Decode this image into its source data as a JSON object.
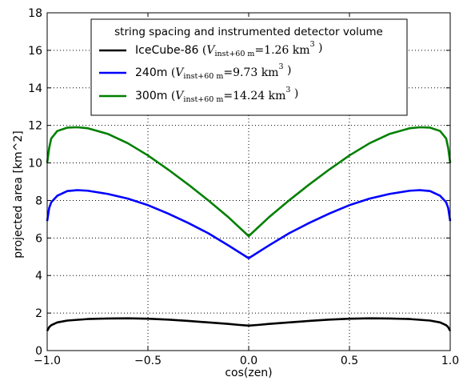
{
  "chart_data": {
    "type": "line",
    "xlabel": "cos(zen)",
    "ylabel": "projected area [km^2]",
    "xlim": [
      -1.0,
      1.0
    ],
    "ylim": [
      0,
      18
    ],
    "xticks": [
      -1.0,
      -0.5,
      0.0,
      0.5,
      1.0
    ],
    "xtick_labels": [
      "−1.0",
      "−0.5",
      "0.0",
      "0.5",
      "1.0"
    ],
    "yticks": [
      0,
      2,
      4,
      6,
      8,
      10,
      12,
      14,
      16,
      18
    ],
    "ytick_labels": [
      "0",
      "2",
      "4",
      "6",
      "8",
      "10",
      "12",
      "14",
      "16",
      "18"
    ],
    "grid": true,
    "legend": {
      "title": "string spacing and instrumented detector volume",
      "placement": "top-center"
    },
    "series": [
      {
        "name": "IceCube-86",
        "color": "#000000",
        "volume_label": {
          "prefix": "(",
          "var": "V",
          "sub": "inst+60 m",
          "eq": "=1.26 km",
          "sup": "3",
          "suffix": ")"
        },
        "x": [
          -1.0,
          -0.99,
          -0.98,
          -0.95,
          -0.9,
          -0.8,
          -0.7,
          -0.6,
          -0.5,
          -0.4,
          -0.3,
          -0.2,
          -0.1,
          -0.05,
          0.0,
          0.05,
          0.1,
          0.2,
          0.3,
          0.4,
          0.5,
          0.6,
          0.7,
          0.8,
          0.9,
          0.95,
          0.98,
          0.99,
          1.0
        ],
        "y": [
          1.05,
          1.25,
          1.35,
          1.5,
          1.6,
          1.68,
          1.71,
          1.72,
          1.7,
          1.65,
          1.58,
          1.5,
          1.42,
          1.37,
          1.33,
          1.37,
          1.42,
          1.5,
          1.58,
          1.65,
          1.7,
          1.72,
          1.71,
          1.68,
          1.6,
          1.5,
          1.35,
          1.25,
          1.05
        ]
      },
      {
        "name": "240m",
        "color": "#0000ff",
        "volume_label": {
          "prefix": "(",
          "var": "V",
          "sub": "inst+60 m",
          "eq": "=9.73 km",
          "sup": "3",
          "suffix": ")"
        },
        "x": [
          -1.0,
          -0.99,
          -0.98,
          -0.95,
          -0.9,
          -0.85,
          -0.8,
          -0.7,
          -0.6,
          -0.5,
          -0.4,
          -0.3,
          -0.2,
          -0.1,
          0.0,
          0.1,
          0.2,
          0.3,
          0.4,
          0.5,
          0.6,
          0.7,
          0.8,
          0.85,
          0.9,
          0.95,
          0.98,
          0.99,
          1.0
        ],
        "y": [
          6.9,
          7.6,
          7.9,
          8.25,
          8.5,
          8.55,
          8.52,
          8.35,
          8.1,
          7.75,
          7.3,
          6.8,
          6.25,
          5.6,
          4.92,
          5.6,
          6.25,
          6.8,
          7.3,
          7.75,
          8.1,
          8.35,
          8.52,
          8.55,
          8.5,
          8.25,
          7.9,
          7.6,
          6.9
        ]
      },
      {
        "name": "300m",
        "color": "#008000",
        "volume_label": {
          "prefix": "(",
          "var": "V",
          "sub": "inst+60 m",
          "eq": "=14.24 km",
          "sup": "3",
          "suffix": ")"
        },
        "x": [
          -1.0,
          -0.99,
          -0.98,
          -0.95,
          -0.9,
          -0.85,
          -0.8,
          -0.7,
          -0.6,
          -0.5,
          -0.4,
          -0.3,
          -0.2,
          -0.1,
          0.0,
          0.1,
          0.2,
          0.3,
          0.4,
          0.5,
          0.6,
          0.7,
          0.8,
          0.85,
          0.9,
          0.95,
          0.98,
          0.99,
          1.0
        ],
        "y": [
          10.0,
          10.8,
          11.3,
          11.7,
          11.88,
          11.9,
          11.85,
          11.55,
          11.05,
          10.4,
          9.65,
          8.85,
          8.0,
          7.1,
          6.1,
          7.1,
          8.0,
          8.85,
          9.65,
          10.4,
          11.05,
          11.55,
          11.85,
          11.9,
          11.88,
          11.7,
          11.3,
          10.8,
          10.0
        ]
      }
    ]
  }
}
